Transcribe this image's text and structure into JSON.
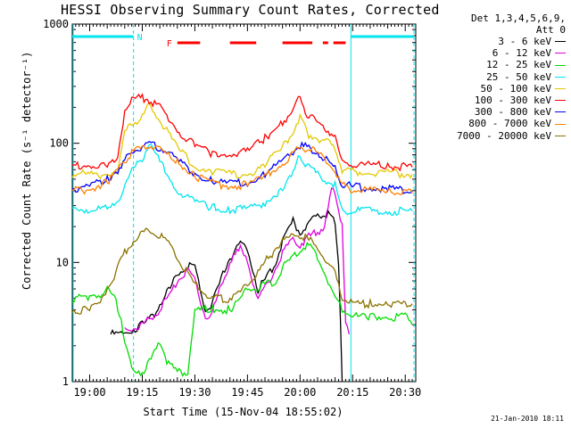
{
  "title": "HESSI Observing Summary Count Rates, Corrected",
  "legend_header": [
    "Det 1,3,4,5,6,9,",
    "Att 0"
  ],
  "timestamp": "21-Jan-2010 18:11",
  "chart_data": {
    "type": "line",
    "title": "HESSI Observing Summary Count Rates, Corrected",
    "xlabel": "Start Time (15-Nov-04 18:55:02)",
    "ylabel": "Corrected Count Rate (s⁻¹ detector⁻¹)",
    "yscale": "log",
    "ylim": [
      1,
      1000
    ],
    "xlim": [
      "18:55:02",
      "20:33:00"
    ],
    "xticks": [
      "19:00",
      "19:15",
      "19:30",
      "19:45",
      "20:00",
      "20:15",
      "20:30"
    ],
    "yticks": [
      "1",
      "10",
      "100",
      "1000"
    ],
    "grid": false,
    "legend_position": "right",
    "series": [
      {
        "name": "3 - 6 keV",
        "color": "#000000",
        "x": [
          "19:06",
          "19:10",
          "19:12",
          "19:15",
          "19:18",
          "19:20",
          "19:23",
          "19:25",
          "19:28",
          "19:30",
          "19:33",
          "19:35",
          "19:38",
          "19:40",
          "19:43",
          "19:45",
          "19:48",
          "19:50",
          "19:53",
          "19:55",
          "19:58",
          "20:00",
          "20:02",
          "20:05",
          "20:07",
          "20:09",
          "20:10",
          "20:11",
          "20:12"
        ],
        "y": [
          2.5,
          2.5,
          2.7,
          3.0,
          3.5,
          4.5,
          6.0,
          8.0,
          9.5,
          9.0,
          4.0,
          4.5,
          8.0,
          11.0,
          14.0,
          13.0,
          6.0,
          7.0,
          10.0,
          15.0,
          22.0,
          18.0,
          20.0,
          25.0,
          26.0,
          24.0,
          22.0,
          10.0,
          1.0
        ]
      },
      {
        "name": "6 - 12 keV",
        "color": "#e000e0",
        "x": [
          "19:10",
          "19:13",
          "19:15",
          "19:18",
          "19:20",
          "19:23",
          "19:25",
          "19:28",
          "19:30",
          "19:33",
          "19:35",
          "19:38",
          "19:40",
          "19:43",
          "19:45",
          "19:48",
          "19:50",
          "19:53",
          "19:55",
          "19:58",
          "20:00",
          "20:02",
          "20:05",
          "20:07",
          "20:09",
          "20:10",
          "20:12",
          "20:13",
          "20:14"
        ],
        "y": [
          2.8,
          2.8,
          3.0,
          3.5,
          4.0,
          5.5,
          7.0,
          8.5,
          7.0,
          3.5,
          3.8,
          7.0,
          10.0,
          13.0,
          10.0,
          5.0,
          6.0,
          9.0,
          12.0,
          16.0,
          14.0,
          16.0,
          18.0,
          20.0,
          40.0,
          38.0,
          20.0,
          3.0,
          2.5
        ]
      },
      {
        "name": "12 - 25 keV",
        "color": "#00dd00",
        "x": [
          "18:55",
          "19:00",
          "19:03",
          "19:05",
          "19:07",
          "19:09",
          "19:10",
          "19:12",
          "19:15",
          "19:18",
          "19:20",
          "19:22",
          "19:25",
          "19:28",
          "19:30",
          "19:35",
          "19:40",
          "19:43",
          "19:45",
          "19:48",
          "19:50",
          "19:53",
          "19:55",
          "19:58",
          "20:00",
          "20:03",
          "20:05",
          "20:08",
          "20:10",
          "20:12",
          "20:15",
          "20:20",
          "20:25",
          "20:30",
          "20:32"
        ],
        "y": [
          5.0,
          5.0,
          5.5,
          6.0,
          5.0,
          3.5,
          2.0,
          1.3,
          1.2,
          1.6,
          2.2,
          1.5,
          1.2,
          1.2,
          4.0,
          4.0,
          4.0,
          5.0,
          6.0,
          6.0,
          6.5,
          7.0,
          9.0,
          11.0,
          13.0,
          14.0,
          11.0,
          7.0,
          5.0,
          4.0,
          3.5,
          3.5,
          3.5,
          3.5,
          3.0
        ]
      },
      {
        "name": "25 - 50 keV",
        "color": "#00e5ee",
        "x": [
          "18:55",
          "19:00",
          "19:05",
          "19:08",
          "19:10",
          "19:12",
          "19:15",
          "19:17",
          "19:20",
          "19:25",
          "19:30",
          "19:35",
          "19:40",
          "19:45",
          "19:50",
          "19:55",
          "19:58",
          "20:00",
          "20:02",
          "20:05",
          "20:08",
          "20:10",
          "20:12",
          "20:15",
          "20:20",
          "20:25",
          "20:32"
        ],
        "y": [
          28,
          28,
          28,
          30,
          48,
          58,
          75,
          100,
          70,
          40,
          32,
          29,
          28,
          28,
          32,
          42,
          55,
          80,
          65,
          55,
          48,
          45,
          27,
          27,
          27,
          27,
          27
        ]
      },
      {
        "name": "50 - 100 keV",
        "color": "#e5c800",
        "x": [
          "18:55",
          "19:00",
          "19:05",
          "19:08",
          "19:10",
          "19:12",
          "19:15",
          "19:17",
          "19:20",
          "19:25",
          "19:30",
          "19:35",
          "19:40",
          "19:45",
          "19:50",
          "19:55",
          "19:58",
          "20:00",
          "20:02",
          "20:05",
          "20:08",
          "20:10",
          "20:12",
          "20:15",
          "20:20",
          "20:25",
          "20:32"
        ],
        "y": [
          55,
          55,
          55,
          60,
          120,
          145,
          165,
          210,
          160,
          90,
          65,
          58,
          55,
          55,
          65,
          95,
          125,
          170,
          120,
          110,
          100,
          90,
          60,
          58,
          57,
          56,
          55
        ]
      },
      {
        "name": "100 - 300 keV",
        "color": "#ff0000",
        "x": [
          "18:55",
          "19:00",
          "19:05",
          "19:08",
          "19:10",
          "19:12",
          "19:15",
          "19:17",
          "19:20",
          "19:25",
          "19:30",
          "19:35",
          "19:40",
          "19:45",
          "19:50",
          "19:55",
          "19:58",
          "20:00",
          "20:02",
          "20:05",
          "20:08",
          "20:10",
          "20:12",
          "20:15",
          "20:20",
          "20:25",
          "20:32"
        ],
        "y": [
          65,
          65,
          65,
          70,
          190,
          230,
          240,
          230,
          200,
          130,
          95,
          82,
          80,
          85,
          110,
          150,
          180,
          250,
          170,
          150,
          130,
          110,
          70,
          67,
          65,
          65,
          63
        ]
      },
      {
        "name": "300 - 800 keV",
        "color": "#0000ff",
        "x": [
          "18:55",
          "19:00",
          "19:05",
          "19:08",
          "19:10",
          "19:12",
          "19:15",
          "19:17",
          "19:20",
          "19:25",
          "19:30",
          "19:35",
          "19:40",
          "19:45",
          "19:50",
          "19:55",
          "19:58",
          "20:00",
          "20:02",
          "20:05",
          "20:08",
          "20:10",
          "20:12",
          "20:15",
          "20:20",
          "20:25",
          "20:32"
        ],
        "y": [
          42,
          43,
          50,
          60,
          72,
          85,
          95,
          100,
          92,
          72,
          55,
          48,
          46,
          47,
          55,
          70,
          85,
          95,
          92,
          85,
          70,
          60,
          46,
          43,
          42,
          41,
          40
        ]
      },
      {
        "name": "800 - 7000 keV",
        "color": "#ff8000",
        "x": [
          "18:55",
          "19:00",
          "19:05",
          "19:08",
          "19:10",
          "19:12",
          "19:15",
          "19:17",
          "19:20",
          "19:25",
          "19:30",
          "19:35",
          "19:40",
          "19:45",
          "19:50",
          "19:55",
          "19:58",
          "20:00",
          "20:02",
          "20:05",
          "20:08",
          "20:10",
          "20:12",
          "20:15",
          "20:20",
          "20:25",
          "20:32"
        ],
        "y": [
          40,
          41,
          48,
          58,
          70,
          82,
          92,
          97,
          90,
          70,
          53,
          46,
          44,
          45,
          53,
          68,
          83,
          92,
          90,
          83,
          68,
          58,
          44,
          41,
          40,
          39,
          38
        ]
      },
      {
        "name": "7000 - 20000 keV",
        "color": "#8b7300",
        "x": [
          "18:55",
          "19:00",
          "19:03",
          "19:05",
          "19:08",
          "19:10",
          "19:13",
          "19:15",
          "19:18",
          "19:20",
          "19:23",
          "19:25",
          "19:28",
          "19:30",
          "19:33",
          "19:35",
          "19:38",
          "19:40",
          "19:43",
          "19:45",
          "19:48",
          "19:50",
          "19:53",
          "19:55",
          "19:58",
          "20:00",
          "20:03",
          "20:05",
          "20:08",
          "20:10",
          "20:12",
          "20:15",
          "20:20",
          "20:25",
          "20:32"
        ],
        "y": [
          4.0,
          4.0,
          4.5,
          6.0,
          9.0,
          12.0,
          16.0,
          18.0,
          18.0,
          17.0,
          14.0,
          11.0,
          8.0,
          6.5,
          5.5,
          5.0,
          5.0,
          5.0,
          5.5,
          6.5,
          8.0,
          10.0,
          13.0,
          15.0,
          17.0,
          17.0,
          15.0,
          13.0,
          10.0,
          8.0,
          5.0,
          4.5,
          4.5,
          4.5,
          4.5
        ]
      }
    ],
    "annotations": [
      {
        "label": "N",
        "color": "#00e5ee",
        "intervals": [
          [
            "18:55:02",
            "19:12:30"
          ],
          [
            "20:14:30",
            "20:32:30"
          ]
        ]
      },
      {
        "label": "F",
        "color": "#ff0000",
        "intervals": [
          [
            "19:25:00",
            "19:31:30"
          ],
          [
            "19:40:00",
            "19:47:30"
          ],
          [
            "19:55:00",
            "20:03:30"
          ],
          [
            "20:06:30",
            "20:08:00"
          ],
          [
            "20:09:30",
            "20:13:00"
          ]
        ]
      }
    ],
    "vlines": {
      "color": "#00e5ee",
      "x": [
        "19:12:30",
        "20:32:30"
      ]
    },
    "solid_vline": {
      "color": "#00e5ee",
      "x": "20:14:30"
    }
  }
}
